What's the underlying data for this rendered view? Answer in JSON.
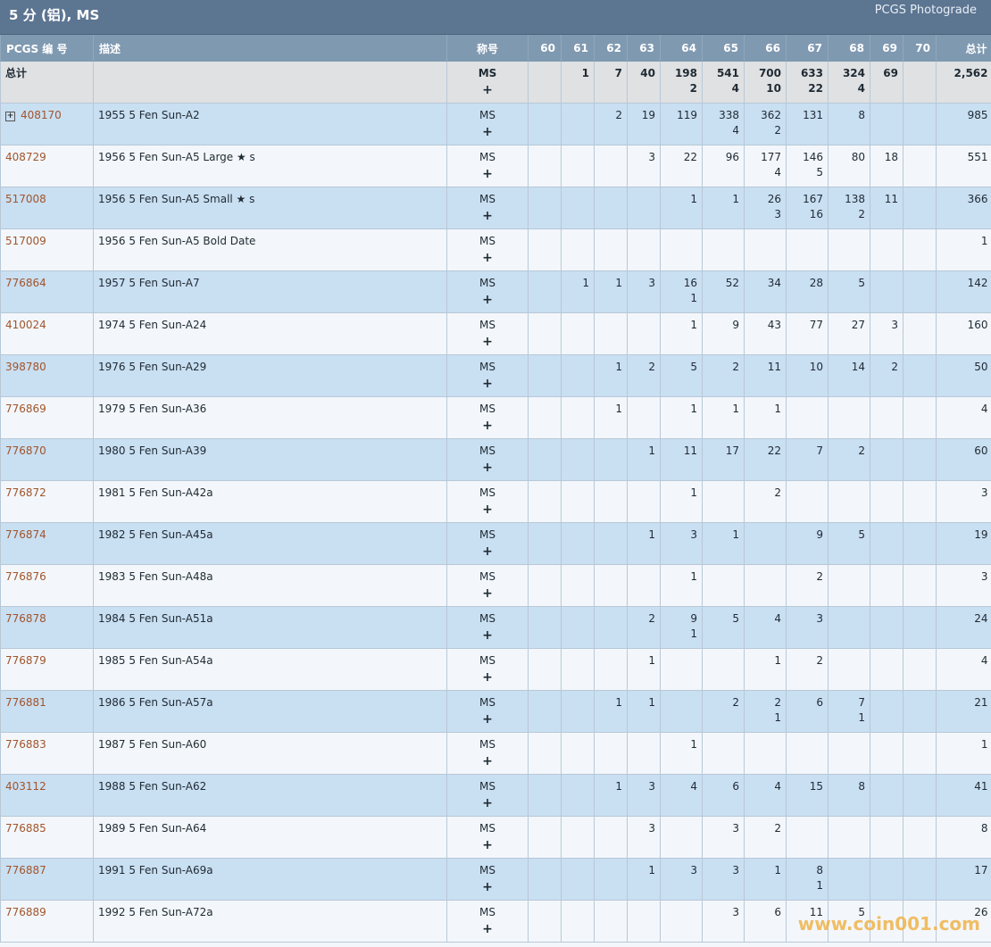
{
  "header": {
    "title": "5 分 (铝), MS",
    "brand": "PCGS Photograde"
  },
  "columns": [
    "PCGS 编 号",
    "描述",
    "称号",
    "60",
    "61",
    "62",
    "63",
    "64",
    "65",
    "66",
    "67",
    "68",
    "69",
    "70",
    "总计"
  ],
  "total_row": {
    "label": "总计",
    "designation": "MS",
    "plus": "+",
    "grades": [
      [
        ""
      ],
      [
        "1"
      ],
      [
        "7"
      ],
      [
        "40"
      ],
      [
        "198",
        "2"
      ],
      [
        "541",
        "4"
      ],
      [
        "700",
        "10"
      ],
      [
        "633",
        "22"
      ],
      [
        "324",
        "4"
      ],
      [
        "69"
      ],
      [
        ""
      ]
    ],
    "total": "2,562"
  },
  "rows": [
    {
      "id": "408170",
      "desc": "1955 5 Fen Sun-A2",
      "des": "MS",
      "plus": "+",
      "grades": [
        [
          ""
        ],
        [
          ""
        ],
        [
          "2"
        ],
        [
          "19"
        ],
        [
          "119"
        ],
        [
          "338",
          "4"
        ],
        [
          "362",
          "2"
        ],
        [
          "131"
        ],
        [
          "8"
        ],
        [
          ""
        ],
        [
          ""
        ]
      ],
      "total": "985"
    },
    {
      "id": "408729",
      "desc": "1956 5 Fen Sun-A5 Large ★ s",
      "des": "MS",
      "plus": "+",
      "grades": [
        [
          ""
        ],
        [
          ""
        ],
        [
          ""
        ],
        [
          "3"
        ],
        [
          "22"
        ],
        [
          "96"
        ],
        [
          "177",
          "4"
        ],
        [
          "146",
          "5"
        ],
        [
          "80"
        ],
        [
          "18"
        ],
        [
          ""
        ]
      ],
      "total": "551"
    },
    {
      "id": "517008",
      "desc": "1956 5 Fen Sun-A5 Small ★ s",
      "des": "MS",
      "plus": "+",
      "grades": [
        [
          ""
        ],
        [
          ""
        ],
        [
          ""
        ],
        [
          ""
        ],
        [
          "1"
        ],
        [
          "1"
        ],
        [
          "26",
          "3"
        ],
        [
          "167",
          "16"
        ],
        [
          "138",
          "2"
        ],
        [
          "11"
        ],
        [
          ""
        ]
      ],
      "total": "366"
    },
    {
      "id": "517009",
      "desc": "1956 5 Fen Sun-A5 Bold Date",
      "des": "MS",
      "plus": "+",
      "grades": [
        [
          ""
        ],
        [
          ""
        ],
        [
          ""
        ],
        [
          ""
        ],
        [
          ""
        ],
        [
          ""
        ],
        [
          ""
        ],
        [
          ""
        ],
        [
          ""
        ],
        [
          ""
        ],
        [
          ""
        ]
      ],
      "total": "1"
    },
    {
      "id": "776864",
      "desc": "1957 5 Fen Sun-A7",
      "des": "MS",
      "plus": "+",
      "grades": [
        [
          ""
        ],
        [
          "1"
        ],
        [
          "1"
        ],
        [
          "3"
        ],
        [
          "16",
          "1"
        ],
        [
          "52"
        ],
        [
          "34"
        ],
        [
          "28"
        ],
        [
          "5"
        ],
        [
          ""
        ],
        [
          ""
        ]
      ],
      "total": "142"
    },
    {
      "id": "410024",
      "desc": "1974 5 Fen Sun-A24",
      "des": "MS",
      "plus": "+",
      "grades": [
        [
          ""
        ],
        [
          ""
        ],
        [
          ""
        ],
        [
          ""
        ],
        [
          "1"
        ],
        [
          "9"
        ],
        [
          "43"
        ],
        [
          "77"
        ],
        [
          "27"
        ],
        [
          "3"
        ],
        [
          ""
        ]
      ],
      "total": "160"
    },
    {
      "id": "398780",
      "desc": "1976 5 Fen Sun-A29",
      "des": "MS",
      "plus": "+",
      "grades": [
        [
          ""
        ],
        [
          ""
        ],
        [
          "1"
        ],
        [
          "2"
        ],
        [
          "5"
        ],
        [
          "2"
        ],
        [
          "11"
        ],
        [
          "10"
        ],
        [
          "14"
        ],
        [
          "2"
        ],
        [
          ""
        ]
      ],
      "total": "50"
    },
    {
      "id": "776869",
      "desc": "1979 5 Fen Sun-A36",
      "des": "MS",
      "plus": "+",
      "grades": [
        [
          ""
        ],
        [
          ""
        ],
        [
          "1"
        ],
        [
          ""
        ],
        [
          "1"
        ],
        [
          "1"
        ],
        [
          "1"
        ],
        [
          ""
        ],
        [
          ""
        ],
        [
          ""
        ],
        [
          ""
        ]
      ],
      "total": "4"
    },
    {
      "id": "776870",
      "desc": "1980 5 Fen Sun-A39",
      "des": "MS",
      "plus": "+",
      "grades": [
        [
          ""
        ],
        [
          ""
        ],
        [
          ""
        ],
        [
          "1"
        ],
        [
          "11"
        ],
        [
          "17"
        ],
        [
          "22"
        ],
        [
          "7"
        ],
        [
          "2"
        ],
        [
          ""
        ],
        [
          ""
        ]
      ],
      "total": "60"
    },
    {
      "id": "776872",
      "desc": "1981 5 Fen Sun-A42a",
      "des": "MS",
      "plus": "+",
      "grades": [
        [
          ""
        ],
        [
          ""
        ],
        [
          ""
        ],
        [
          ""
        ],
        [
          "1"
        ],
        [
          ""
        ],
        [
          "2"
        ],
        [
          ""
        ],
        [
          ""
        ],
        [
          ""
        ],
        [
          ""
        ]
      ],
      "total": "3"
    },
    {
      "id": "776874",
      "desc": "1982 5 Fen Sun-A45a",
      "des": "MS",
      "plus": "+",
      "grades": [
        [
          ""
        ],
        [
          ""
        ],
        [
          ""
        ],
        [
          "1"
        ],
        [
          "3"
        ],
        [
          "1"
        ],
        [
          ""
        ],
        [
          "9"
        ],
        [
          "5"
        ],
        [
          ""
        ],
        [
          ""
        ]
      ],
      "total": "19"
    },
    {
      "id": "776876",
      "desc": "1983 5 Fen Sun-A48a",
      "des": "MS",
      "plus": "+",
      "grades": [
        [
          ""
        ],
        [
          ""
        ],
        [
          ""
        ],
        [
          ""
        ],
        [
          "1"
        ],
        [
          ""
        ],
        [
          ""
        ],
        [
          "2"
        ],
        [
          ""
        ],
        [
          ""
        ],
        [
          ""
        ]
      ],
      "total": "3"
    },
    {
      "id": "776878",
      "desc": "1984 5 Fen Sun-A51a",
      "des": "MS",
      "plus": "+",
      "grades": [
        [
          ""
        ],
        [
          ""
        ],
        [
          ""
        ],
        [
          "2"
        ],
        [
          "9",
          "1"
        ],
        [
          "5"
        ],
        [
          "4"
        ],
        [
          "3"
        ],
        [
          ""
        ],
        [
          ""
        ],
        [
          ""
        ]
      ],
      "total": "24"
    },
    {
      "id": "776879",
      "desc": "1985 5 Fen Sun-A54a",
      "des": "MS",
      "plus": "+",
      "grades": [
        [
          ""
        ],
        [
          ""
        ],
        [
          ""
        ],
        [
          "1"
        ],
        [
          ""
        ],
        [
          ""
        ],
        [
          "1"
        ],
        [
          "2"
        ],
        [
          ""
        ],
        [
          ""
        ],
        [
          ""
        ]
      ],
      "total": "4"
    },
    {
      "id": "776881",
      "desc": "1986 5 Fen Sun-A57a",
      "des": "MS",
      "plus": "+",
      "grades": [
        [
          ""
        ],
        [
          ""
        ],
        [
          "1"
        ],
        [
          "1"
        ],
        [
          ""
        ],
        [
          "2"
        ],
        [
          "2",
          "1"
        ],
        [
          "6"
        ],
        [
          "7",
          "1"
        ],
        [
          ""
        ],
        [
          ""
        ]
      ],
      "total": "21"
    },
    {
      "id": "776883",
      "desc": "1987 5 Fen Sun-A60",
      "des": "MS",
      "plus": "+",
      "grades": [
        [
          ""
        ],
        [
          ""
        ],
        [
          ""
        ],
        [
          ""
        ],
        [
          "1"
        ],
        [
          ""
        ],
        [
          ""
        ],
        [
          ""
        ],
        [
          ""
        ],
        [
          ""
        ],
        [
          ""
        ]
      ],
      "total": "1"
    },
    {
      "id": "403112",
      "desc": "1988 5 Fen Sun-A62",
      "des": "MS",
      "plus": "+",
      "grades": [
        [
          ""
        ],
        [
          ""
        ],
        [
          "1"
        ],
        [
          "3"
        ],
        [
          "4"
        ],
        [
          "6"
        ],
        [
          "4"
        ],
        [
          "15"
        ],
        [
          "8"
        ],
        [
          ""
        ],
        [
          ""
        ]
      ],
      "total": "41"
    },
    {
      "id": "776885",
      "desc": "1989 5 Fen Sun-A64",
      "des": "MS",
      "plus": "+",
      "grades": [
        [
          ""
        ],
        [
          ""
        ],
        [
          ""
        ],
        [
          "3"
        ],
        [
          ""
        ],
        [
          "3"
        ],
        [
          "2"
        ],
        [
          ""
        ],
        [
          ""
        ],
        [
          ""
        ],
        [
          ""
        ]
      ],
      "total": "8"
    },
    {
      "id": "776887",
      "desc": "1991 5 Fen Sun-A69a",
      "des": "MS",
      "plus": "+",
      "grades": [
        [
          ""
        ],
        [
          ""
        ],
        [
          ""
        ],
        [
          "1"
        ],
        [
          "3"
        ],
        [
          "3"
        ],
        [
          "1"
        ],
        [
          "8",
          "1"
        ],
        [
          ""
        ],
        [
          ""
        ],
        [
          ""
        ]
      ],
      "total": "17"
    },
    {
      "id": "776889",
      "desc": "1992 5 Fen Sun-A72a",
      "des": "MS",
      "plus": "+",
      "grades": [
        [
          ""
        ],
        [
          ""
        ],
        [
          ""
        ],
        [
          ""
        ],
        [
          ""
        ],
        [
          "3"
        ],
        [
          "6"
        ],
        [
          "11"
        ],
        [
          "5"
        ],
        [
          ""
        ],
        [
          ""
        ]
      ],
      "total": "26"
    }
  ],
  "expand_icon": "plus-box-icon",
  "watermark": "www.coin001.com"
}
